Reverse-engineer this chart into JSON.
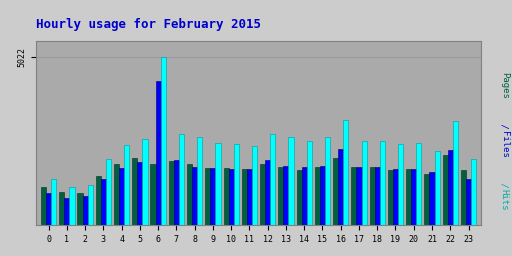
{
  "title": "Hourly usage for February 2015",
  "hours": [
    0,
    1,
    2,
    3,
    4,
    5,
    6,
    7,
    8,
    9,
    10,
    11,
    12,
    13,
    14,
    15,
    16,
    17,
    18,
    19,
    20,
    21,
    22,
    23
  ],
  "hits": [
    1380,
    1150,
    1200,
    1980,
    2400,
    2580,
    5022,
    2720,
    2620,
    2460,
    2420,
    2380,
    2720,
    2640,
    2500,
    2620,
    3150,
    2520,
    2520,
    2420,
    2460,
    2230,
    3120,
    1980
  ],
  "files": [
    960,
    820,
    860,
    1380,
    1720,
    1900,
    4300,
    1960,
    1740,
    1720,
    1680,
    1680,
    1940,
    1780,
    1740,
    1780,
    2280,
    1740,
    1740,
    1680,
    1680,
    1600,
    2240,
    1380
  ],
  "pages": [
    1150,
    1000,
    960,
    1480,
    1820,
    2020,
    1820,
    1920,
    1820,
    1720,
    1720,
    1680,
    1820,
    1740,
    1640,
    1740,
    2020,
    1740,
    1740,
    1640,
    1680,
    1540,
    2100,
    1640
  ],
  "hits_color": "#00ffff",
  "files_color": "#0000ff",
  "pages_color": "#006040",
  "bg_color": "#cccccc",
  "plot_bg": "#aaaaaa",
  "title_color": "#0000cc",
  "border_color": "#808080",
  "bar_width": 0.28,
  "ylim": [
    0,
    5500
  ],
  "ytick_val": 5022,
  "grid_color": "#999999",
  "ylabel_pages_color": "#006040",
  "ylabel_files_color": "#0000cc",
  "ylabel_hits_color": "#00aaaa"
}
